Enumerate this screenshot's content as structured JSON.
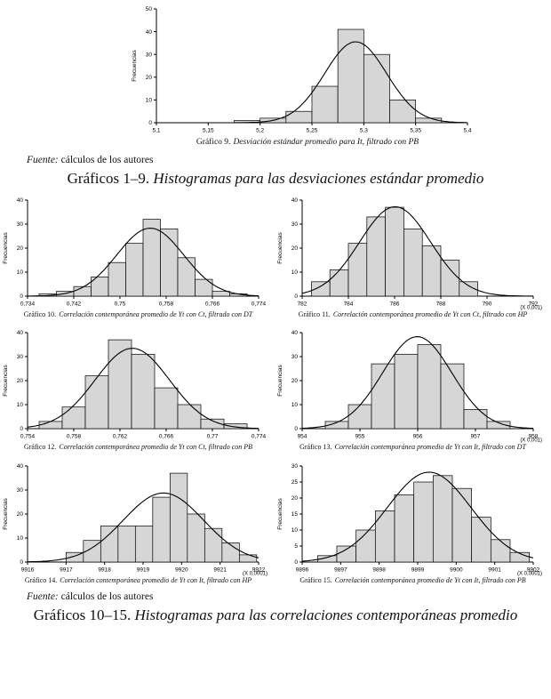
{
  "page": {
    "fuente_label": "Fuente:",
    "fuente_text": "cálculos de los autores",
    "heading1_prefix": "Gráficos 1–9. ",
    "heading1_italic": "Histogramas para las desviaciones estándar promedio",
    "heading2_prefix": "Gráficos 10–15. ",
    "heading2_italic": "Histogramas para las correlaciones contemporáneas promedio"
  },
  "chart_data": [
    {
      "id": "grafico-9",
      "type": "bar",
      "caption_label": "Gráfico 9.",
      "caption_text": "Desviación estándar promedio para It, filtrado con PB",
      "ylabel": "Frecuencias",
      "ylim": [
        0,
        50
      ],
      "yticks": [
        0,
        10,
        20,
        30,
        40,
        50
      ],
      "xlim": [
        5.1,
        5.4
      ],
      "xticks": [
        5.1,
        5.15,
        5.2,
        5.25,
        5.3,
        5.35,
        5.4
      ],
      "xtick_labels": [
        "5,1",
        "5,15",
        "5,2",
        "5,25",
        "5,3",
        "5,35",
        "5,4"
      ],
      "x_scale_note": null,
      "bins": {
        "start": 5.175,
        "width": 0.025
      },
      "values": [
        1,
        2,
        5,
        16,
        41,
        30,
        10,
        2
      ],
      "curve": "normal",
      "grid": false,
      "legend": "none"
    },
    {
      "id": "grafico-10",
      "type": "bar",
      "caption_label": "Gráfico 10.",
      "caption_text": "Correlación contemporánea promedio de Yt con Ct, filtrado con DT",
      "ylabel": "Frecuencias",
      "ylim": [
        0,
        40
      ],
      "yticks": [
        0,
        10,
        20,
        30,
        40
      ],
      "xlim": [
        0.734,
        0.774
      ],
      "xticks": [
        0.734,
        0.742,
        0.75,
        0.758,
        0.766,
        0.774
      ],
      "xtick_labels": [
        "0,734",
        "0,742",
        "0,75",
        "0,758",
        "0,766",
        "0,774"
      ],
      "x_scale_note": null,
      "bins": {
        "start": 0.736,
        "width": 0.003
      },
      "values": [
        1,
        2,
        4,
        8,
        14,
        22,
        32,
        28,
        16,
        7,
        2,
        1
      ],
      "curve": "normal",
      "grid": false,
      "legend": "none"
    },
    {
      "id": "grafico-11",
      "type": "bar",
      "caption_label": "Gráfico 11.",
      "caption_text": "Correlación contemporánea promedio de Yt con Ct, filtrado con HP",
      "ylabel": "Frecuencias",
      "ylim": [
        0,
        40
      ],
      "yticks": [
        0,
        10,
        20,
        30,
        40
      ],
      "xlim": [
        782,
        792
      ],
      "xticks": [
        782,
        784,
        786,
        788,
        790,
        792
      ],
      "xtick_labels": [
        "782",
        "784",
        "786",
        "788",
        "790",
        "792"
      ],
      "x_scale_note": "(X 0,001)",
      "bins": {
        "start": 782.4,
        "width": 0.8
      },
      "values": [
        6,
        11,
        22,
        33,
        37,
        28,
        21,
        15,
        6
      ],
      "curve": "normal",
      "grid": false,
      "legend": "none"
    },
    {
      "id": "grafico-12",
      "type": "bar",
      "caption_label": "Gráfico 12.",
      "caption_text": "Correlación contemporánea promedio de Yt con Ct, filtrado con PB",
      "ylabel": "Frecuencias",
      "ylim": [
        0,
        40
      ],
      "yticks": [
        0,
        10,
        20,
        30,
        40
      ],
      "xlim": [
        0.754,
        0.774
      ],
      "xticks": [
        0.754,
        0.758,
        0.762,
        0.766,
        0.77,
        0.774
      ],
      "xtick_labels": [
        "0,754",
        "0,758",
        "0,762",
        "0,766",
        "0,77",
        "0,774"
      ],
      "x_scale_note": null,
      "bins": {
        "start": 0.755,
        "width": 0.002
      },
      "values": [
        3,
        9,
        22,
        37,
        31,
        17,
        10,
        4,
        2
      ],
      "curve": "normal",
      "grid": false,
      "legend": "none"
    },
    {
      "id": "grafico-13",
      "type": "bar",
      "caption_label": "Gráfico 13.",
      "caption_text": "Correlación contemporánea promedio de Yt con It, filtrado con DT",
      "ylabel": "Frecuencias",
      "ylim": [
        0,
        40
      ],
      "yticks": [
        0,
        10,
        20,
        30,
        40
      ],
      "xlim": [
        954,
        958
      ],
      "xticks": [
        954,
        955,
        956,
        957,
        958
      ],
      "xtick_labels": [
        "954",
        "955",
        "956",
        "957",
        "958"
      ],
      "x_scale_note": "(X 0,001)",
      "bins": {
        "start": 954.4,
        "width": 0.4
      },
      "values": [
        3,
        10,
        27,
        31,
        35,
        27,
        8,
        3
      ],
      "curve": "normal",
      "grid": false,
      "legend": "none"
    },
    {
      "id": "grafico-14",
      "type": "bar",
      "caption_label": "Gráfico 14.",
      "caption_text": "Correlación contemporánea promedio de Yt con It, filtrado con HP",
      "ylabel": "Frecuencias",
      "ylim": [
        0,
        40
      ],
      "yticks": [
        0,
        10,
        20,
        30,
        40
      ],
      "xlim": [
        9916,
        9922
      ],
      "xticks": [
        9916,
        9917,
        9918,
        9919,
        9920,
        9921,
        9922
      ],
      "xtick_labels": [
        "9916",
        "9917",
        "9918",
        "9919",
        "9920",
        "9921",
        "9922"
      ],
      "x_scale_note": "(X 0,0001)",
      "bins": {
        "start": 9917,
        "width": 0.45
      },
      "values": [
        4,
        9,
        15,
        15,
        15,
        27,
        37,
        20,
        14,
        8,
        3
      ],
      "curve": "normal",
      "grid": false,
      "legend": "none"
    },
    {
      "id": "grafico-15",
      "type": "bar",
      "caption_label": "Gráfico 15.",
      "caption_text": "Correlación contemporánea promedio de Yt con It, filtrado con PB",
      "ylabel": "Frecuencias",
      "ylim": [
        0,
        30
      ],
      "yticks": [
        0,
        5,
        10,
        15,
        20,
        25,
        30
      ],
      "xlim": [
        9896,
        9902
      ],
      "xticks": [
        9896,
        9897,
        9898,
        9899,
        9900,
        9901,
        9902
      ],
      "xtick_labels": [
        "9896",
        "9897",
        "9898",
        "9899",
        "9900",
        "9901",
        "9902"
      ],
      "x_scale_note": "(X 0,0001)",
      "bins": {
        "start": 9896.4,
        "width": 0.5
      },
      "values": [
        2,
        5,
        10,
        16,
        21,
        25,
        27,
        23,
        14,
        7,
        3
      ],
      "curve": "normal",
      "grid": false,
      "legend": "none"
    }
  ]
}
